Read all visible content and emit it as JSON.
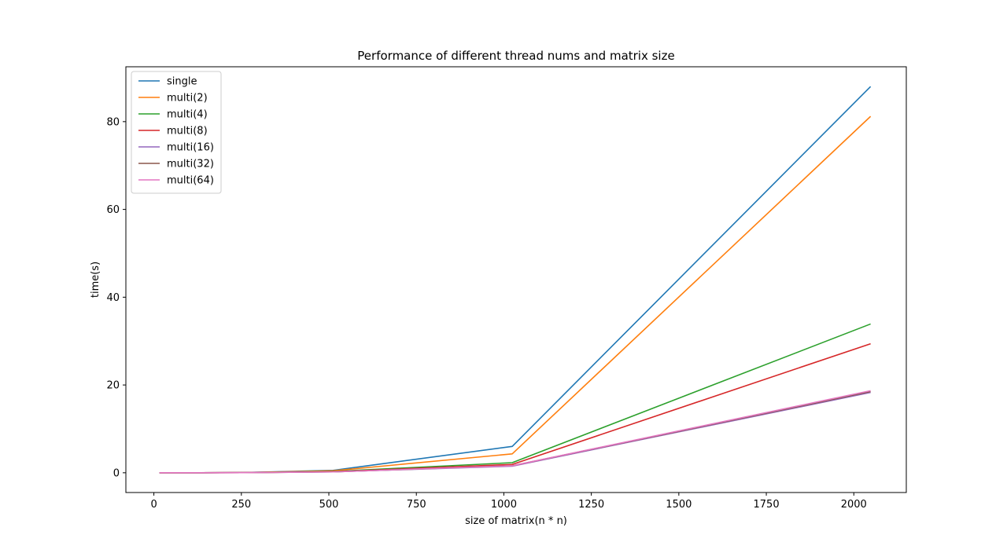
{
  "chart_data": {
    "type": "line",
    "title": "Performance of different thread nums and matrix size",
    "xlabel": "size of matrix(n * n)",
    "ylabel": "time(s)",
    "xlim": [
      -80,
      2150
    ],
    "ylim": [
      -4.5,
      92.5
    ],
    "x_ticks": [
      0,
      250,
      500,
      750,
      1000,
      1250,
      1500,
      1750,
      2000
    ],
    "y_ticks": [
      0,
      20,
      40,
      60,
      80
    ],
    "grid": false,
    "legend_position": "upper left",
    "x": [
      16,
      128,
      256,
      512,
      1024,
      2048
    ],
    "series": [
      {
        "name": "single",
        "color": "#1f77b4",
        "values": [
          0.0,
          0.01,
          0.06,
          0.55,
          6.0,
          88.0
        ]
      },
      {
        "name": "multi(2)",
        "color": "#ff7f0e",
        "values": [
          0.0,
          0.01,
          0.05,
          0.45,
          4.3,
          81.2
        ]
      },
      {
        "name": "multi(4)",
        "color": "#2ca02c",
        "values": [
          0.0,
          0.01,
          0.04,
          0.3,
          2.3,
          33.9
        ]
      },
      {
        "name": "multi(8)",
        "color": "#d62728",
        "values": [
          0.0,
          0.01,
          0.03,
          0.25,
          1.9,
          29.4
        ]
      },
      {
        "name": "multi(16)",
        "color": "#9467bd",
        "values": [
          0.0,
          0.01,
          0.03,
          0.2,
          1.5,
          18.3
        ]
      },
      {
        "name": "multi(32)",
        "color": "#8c564b",
        "values": [
          0.0,
          0.01,
          0.03,
          0.2,
          1.6,
          18.5
        ]
      },
      {
        "name": "multi(64)",
        "color": "#e377c2",
        "values": [
          0.0,
          0.01,
          0.03,
          0.2,
          1.6,
          18.7
        ]
      }
    ]
  }
}
